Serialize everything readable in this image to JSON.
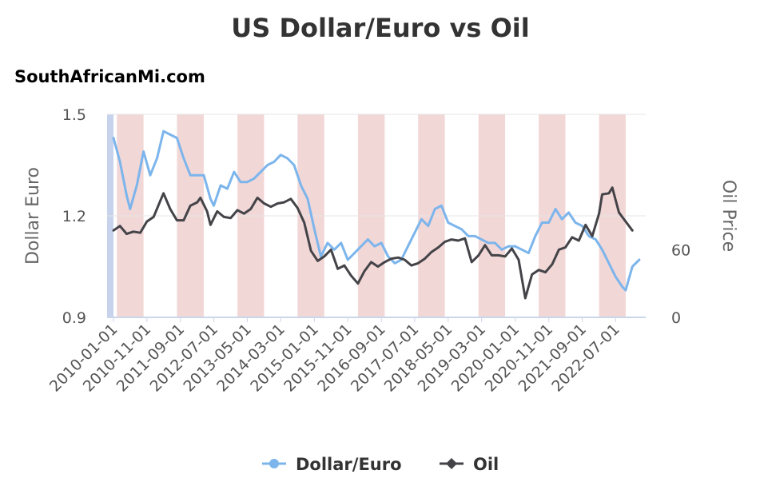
{
  "chart_data": {
    "type": "line",
    "title": "US Dollar/Euro vs Oil",
    "subtitle": "SouthAfricanMi.com",
    "ylabel": "Dollar Euro",
    "y2label": "Oil Price",
    "ylim": [
      0.9,
      1.5
    ],
    "yticks": [
      "0.9",
      "1.2",
      "1.5"
    ],
    "y2lim": [
      0,
      180
    ],
    "y2ticks": [
      "0",
      "60"
    ],
    "xlim": [
      "2010-01-01",
      "2023-04-01"
    ],
    "xticks": [
      "2010-01-01",
      "2010-11-01",
      "2011-09-01",
      "2012-07-01",
      "2013-05-01",
      "2014-03-01",
      "2015-01-01",
      "2015-11-01",
      "2016-09-01",
      "2017-07-01",
      "2018-05-01",
      "2019-03-01",
      "2020-01-01",
      "2020-11-01",
      "2021-09-01",
      "2022-07-01"
    ],
    "grid": true,
    "legend_position": "bottom",
    "shaded_bands": [
      [
        "2010-02-01",
        "2010-10-01"
      ],
      [
        "2011-08-01",
        "2012-04-01"
      ],
      [
        "2013-02-01",
        "2013-10-01"
      ],
      [
        "2014-08-01",
        "2015-04-01"
      ],
      [
        "2016-02-01",
        "2016-10-01"
      ],
      [
        "2017-08-01",
        "2018-04-01"
      ],
      [
        "2019-02-01",
        "2019-10-01"
      ],
      [
        "2020-08-01",
        "2021-04-01"
      ],
      [
        "2022-02-01",
        "2022-10-01"
      ]
    ],
    "series": [
      {
        "name": "Dollar/Euro",
        "axis": "left",
        "color": "#7cb5ec",
        "points": [
          [
            "2010-01-01",
            1.43
          ],
          [
            "2010-03-01",
            1.36
          ],
          [
            "2010-05-01",
            1.26
          ],
          [
            "2010-06-01",
            1.22
          ],
          [
            "2010-08-01",
            1.29
          ],
          [
            "2010-10-01",
            1.39
          ],
          [
            "2010-12-01",
            1.32
          ],
          [
            "2011-02-01",
            1.37
          ],
          [
            "2011-04-01",
            1.45
          ],
          [
            "2011-06-01",
            1.44
          ],
          [
            "2011-08-01",
            1.43
          ],
          [
            "2011-10-01",
            1.37
          ],
          [
            "2011-12-01",
            1.32
          ],
          [
            "2012-02-01",
            1.32
          ],
          [
            "2012-04-01",
            1.32
          ],
          [
            "2012-06-01",
            1.25
          ],
          [
            "2012-07-01",
            1.23
          ],
          [
            "2012-09-01",
            1.29
          ],
          [
            "2012-11-01",
            1.28
          ],
          [
            "2013-01-01",
            1.33
          ],
          [
            "2013-03-01",
            1.3
          ],
          [
            "2013-05-01",
            1.3
          ],
          [
            "2013-07-01",
            1.31
          ],
          [
            "2013-09-01",
            1.33
          ],
          [
            "2013-11-01",
            1.35
          ],
          [
            "2014-01-01",
            1.36
          ],
          [
            "2014-03-01",
            1.38
          ],
          [
            "2014-05-01",
            1.37
          ],
          [
            "2014-07-01",
            1.35
          ],
          [
            "2014-09-01",
            1.29
          ],
          [
            "2014-11-01",
            1.25
          ],
          [
            "2015-01-01",
            1.16
          ],
          [
            "2015-03-01",
            1.08
          ],
          [
            "2015-05-01",
            1.12
          ],
          [
            "2015-07-01",
            1.1
          ],
          [
            "2015-09-01",
            1.12
          ],
          [
            "2015-11-01",
            1.07
          ],
          [
            "2016-01-01",
            1.09
          ],
          [
            "2016-03-01",
            1.11
          ],
          [
            "2016-05-01",
            1.13
          ],
          [
            "2016-07-01",
            1.11
          ],
          [
            "2016-09-01",
            1.12
          ],
          [
            "2016-11-01",
            1.08
          ],
          [
            "2017-01-01",
            1.06
          ],
          [
            "2017-03-01",
            1.07
          ],
          [
            "2017-05-01",
            1.11
          ],
          [
            "2017-07-01",
            1.15
          ],
          [
            "2017-09-01",
            1.19
          ],
          [
            "2017-11-01",
            1.17
          ],
          [
            "2018-01-01",
            1.22
          ],
          [
            "2018-03-01",
            1.23
          ],
          [
            "2018-05-01",
            1.18
          ],
          [
            "2018-07-01",
            1.17
          ],
          [
            "2018-09-01",
            1.16
          ],
          [
            "2018-11-01",
            1.14
          ],
          [
            "2019-01-01",
            1.14
          ],
          [
            "2019-03-01",
            1.13
          ],
          [
            "2019-05-01",
            1.12
          ],
          [
            "2019-07-01",
            1.12
          ],
          [
            "2019-09-01",
            1.1
          ],
          [
            "2019-11-01",
            1.11
          ],
          [
            "2020-01-01",
            1.11
          ],
          [
            "2020-03-01",
            1.1
          ],
          [
            "2020-05-01",
            1.09
          ],
          [
            "2020-07-01",
            1.14
          ],
          [
            "2020-09-01",
            1.18
          ],
          [
            "2020-11-01",
            1.18
          ],
          [
            "2021-01-01",
            1.22
          ],
          [
            "2021-03-01",
            1.19
          ],
          [
            "2021-05-01",
            1.21
          ],
          [
            "2021-07-01",
            1.18
          ],
          [
            "2021-09-01",
            1.17
          ],
          [
            "2021-11-01",
            1.14
          ],
          [
            "2022-01-01",
            1.13
          ],
          [
            "2022-03-01",
            1.1
          ],
          [
            "2022-05-01",
            1.06
          ],
          [
            "2022-07-01",
            1.02
          ],
          [
            "2022-09-01",
            0.99
          ],
          [
            "2022-10-01",
            0.98
          ],
          [
            "2022-12-01",
            1.05
          ],
          [
            "2023-02-01",
            1.07
          ]
        ]
      },
      {
        "name": "Oil",
        "axis": "right",
        "color": "#434348",
        "points": [
          [
            "2010-01-01",
            77
          ],
          [
            "2010-03-01",
            81
          ],
          [
            "2010-05-01",
            74
          ],
          [
            "2010-07-01",
            76
          ],
          [
            "2010-09-01",
            75
          ],
          [
            "2010-11-01",
            85
          ],
          [
            "2011-01-01",
            89
          ],
          [
            "2011-03-01",
            103
          ],
          [
            "2011-04-01",
            110
          ],
          [
            "2011-06-01",
            96
          ],
          [
            "2011-08-01",
            86
          ],
          [
            "2011-10-01",
            86
          ],
          [
            "2011-12-01",
            99
          ],
          [
            "2012-02-01",
            102
          ],
          [
            "2012-03-01",
            106
          ],
          [
            "2012-05-01",
            94
          ],
          [
            "2012-06-01",
            82
          ],
          [
            "2012-08-01",
            94
          ],
          [
            "2012-10-01",
            89
          ],
          [
            "2012-12-01",
            88
          ],
          [
            "2013-02-01",
            95
          ],
          [
            "2013-04-01",
            92
          ],
          [
            "2013-06-01",
            96
          ],
          [
            "2013-08-01",
            106
          ],
          [
            "2013-10-01",
            101
          ],
          [
            "2013-12-01",
            98
          ],
          [
            "2014-02-01",
            101
          ],
          [
            "2014-04-01",
            102
          ],
          [
            "2014-06-01",
            105
          ],
          [
            "2014-08-01",
            97
          ],
          [
            "2014-10-01",
            84
          ],
          [
            "2014-12-01",
            59
          ],
          [
            "2015-02-01",
            50
          ],
          [
            "2015-04-01",
            54
          ],
          [
            "2015-06-01",
            60
          ],
          [
            "2015-08-01",
            43
          ],
          [
            "2015-10-01",
            46
          ],
          [
            "2015-12-01",
            37
          ],
          [
            "2016-02-01",
            30
          ],
          [
            "2016-04-01",
            41
          ],
          [
            "2016-06-01",
            49
          ],
          [
            "2016-08-01",
            45
          ],
          [
            "2016-10-01",
            49
          ],
          [
            "2016-12-01",
            52
          ],
          [
            "2017-02-01",
            53
          ],
          [
            "2017-04-01",
            51
          ],
          [
            "2017-06-01",
            46
          ],
          [
            "2017-08-01",
            48
          ],
          [
            "2017-10-01",
            52
          ],
          [
            "2017-12-01",
            58
          ],
          [
            "2018-02-01",
            62
          ],
          [
            "2018-04-01",
            67
          ],
          [
            "2018-06-01",
            69
          ],
          [
            "2018-08-01",
            68
          ],
          [
            "2018-10-01",
            70
          ],
          [
            "2018-12-01",
            49
          ],
          [
            "2019-02-01",
            55
          ],
          [
            "2019-04-01",
            64
          ],
          [
            "2019-06-01",
            55
          ],
          [
            "2019-08-01",
            55
          ],
          [
            "2019-10-01",
            54
          ],
          [
            "2019-12-01",
            61
          ],
          [
            "2020-02-01",
            51
          ],
          [
            "2020-04-01",
            17
          ],
          [
            "2020-06-01",
            38
          ],
          [
            "2020-08-01",
            42
          ],
          [
            "2020-10-01",
            40
          ],
          [
            "2020-12-01",
            47
          ],
          [
            "2021-02-01",
            60
          ],
          [
            "2021-04-01",
            62
          ],
          [
            "2021-06-01",
            71
          ],
          [
            "2021-08-01",
            68
          ],
          [
            "2021-10-01",
            82
          ],
          [
            "2021-12-01",
            72
          ],
          [
            "2022-02-01",
            92
          ],
          [
            "2022-03-01",
            109
          ],
          [
            "2022-05-01",
            110
          ],
          [
            "2022-06-01",
            115
          ],
          [
            "2022-08-01",
            93
          ],
          [
            "2022-10-01",
            85
          ],
          [
            "2022-12-01",
            77
          ]
        ]
      }
    ]
  }
}
